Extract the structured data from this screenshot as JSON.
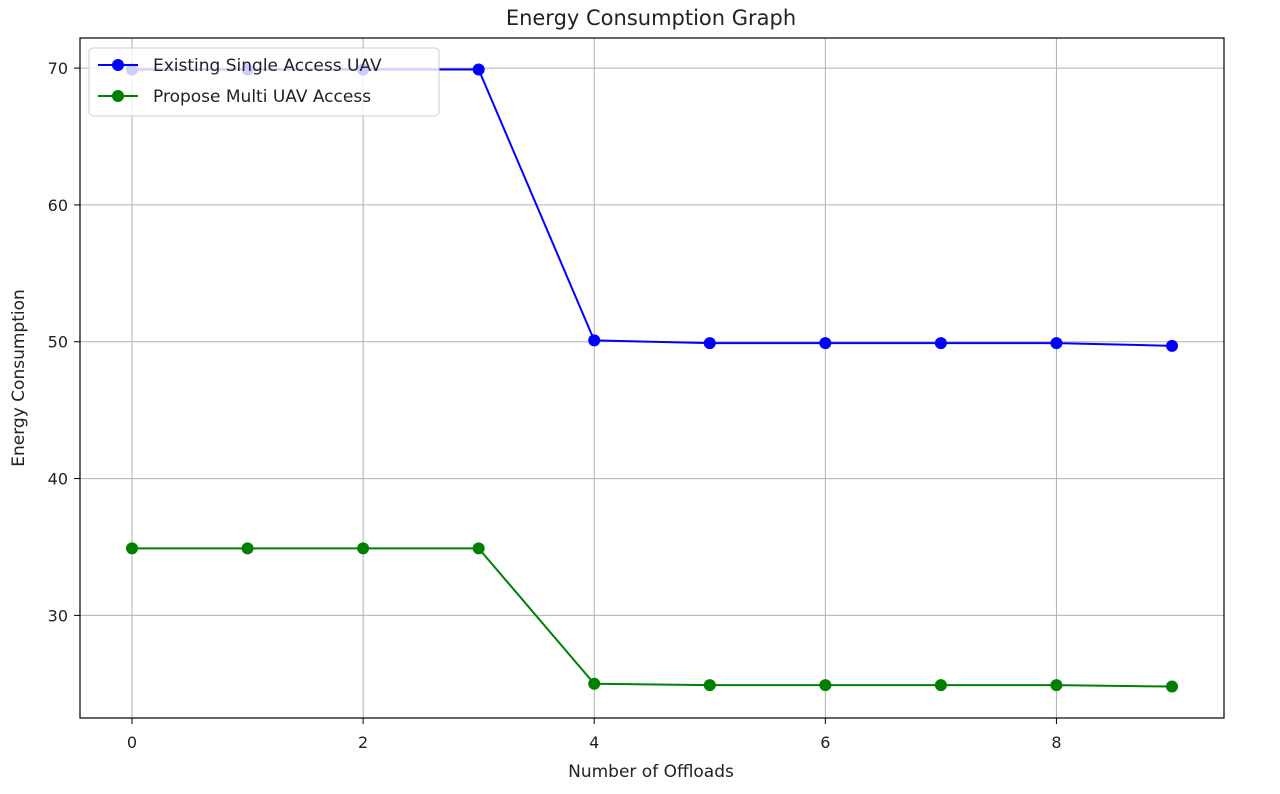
{
  "chart_data": {
    "type": "line",
    "title": "Energy Consumption Graph",
    "xlabel": "Number of Offloads",
    "ylabel": "Energy Consumption",
    "x": [
      0,
      1,
      2,
      3,
      4,
      5,
      6,
      7,
      8,
      9
    ],
    "xlim": [
      -0.45,
      9.45
    ],
    "ylim": [
      22.5,
      72.2
    ],
    "xticks": [
      0,
      2,
      4,
      6,
      8
    ],
    "yticks": [
      30,
      40,
      50,
      60,
      70
    ],
    "grid": true,
    "legend_position": "top-left",
    "series": [
      {
        "name": "Existing Single Access UAV",
        "color": "#0000ff",
        "marker": "circle",
        "values": [
          69.9,
          69.9,
          69.9,
          69.9,
          50.1,
          49.9,
          49.9,
          49.9,
          49.9,
          49.7
        ]
      },
      {
        "name": "Propose Multi UAV Access",
        "color": "#008000",
        "marker": "circle",
        "values": [
          34.9,
          34.9,
          34.9,
          34.9,
          25.0,
          24.9,
          24.9,
          24.9,
          24.9,
          24.8
        ]
      }
    ]
  }
}
